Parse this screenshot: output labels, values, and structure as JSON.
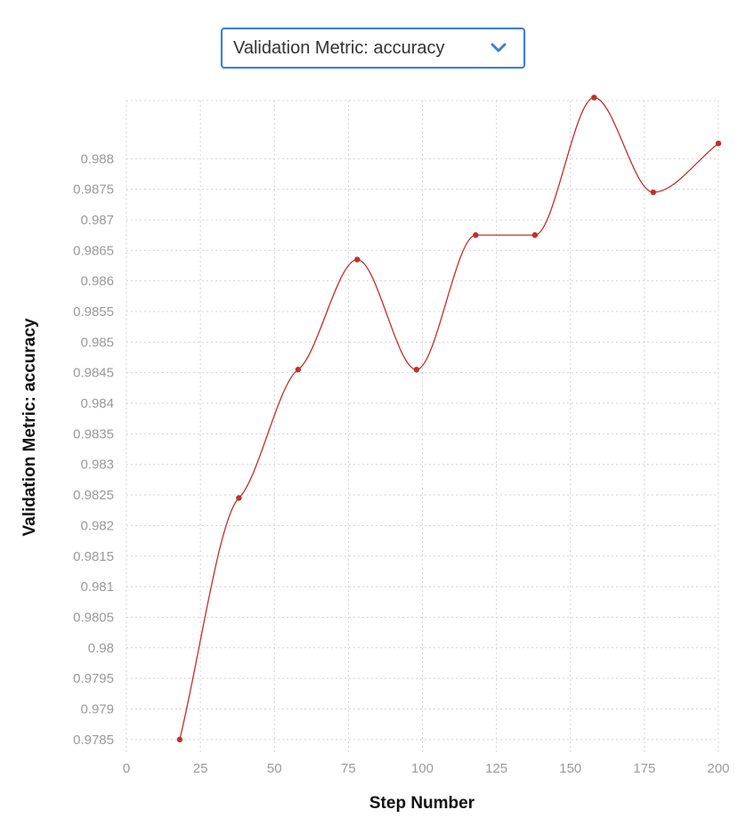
{
  "metric_selector": {
    "selected_label": "Validation Metric: accuracy",
    "icon": "chevron-down-icon"
  },
  "chart_data": {
    "type": "line",
    "xlabel": "Step Number",
    "ylabel": "Validation Metric: accuracy",
    "xlim": [
      0,
      200
    ],
    "ylim": [
      0.97825,
      0.98895
    ],
    "x_ticks": [
      0,
      25,
      50,
      75,
      100,
      125,
      150,
      175,
      200
    ],
    "x_tick_labels": [
      "0",
      "25",
      "50",
      "75",
      "100",
      "125",
      "150",
      "175",
      "200"
    ],
    "y_ticks": [
      0.9785,
      0.979,
      0.9795,
      0.98,
      0.9805,
      0.981,
      0.9815,
      0.982,
      0.9825,
      0.983,
      0.9835,
      0.984,
      0.9845,
      0.985,
      0.9855,
      0.986,
      0.9865,
      0.987,
      0.9875,
      0.988
    ],
    "y_tick_labels": [
      "0.9785",
      "0.979",
      "0.9795",
      "0.98",
      "0.9805",
      "0.981",
      "0.9815",
      "0.982",
      "0.9825",
      "0.983",
      "0.9835",
      "0.984",
      "0.9845",
      "0.985",
      "0.9855",
      "0.986",
      "0.9865",
      "0.987",
      "0.9875",
      "0.988"
    ],
    "grid": true,
    "series": [
      {
        "color": "#c0302a",
        "x": [
          18,
          38,
          58,
          78,
          98,
          118,
          138,
          158,
          178,
          200
        ],
        "y": [
          0.9785,
          0.98245,
          0.98455,
          0.98635,
          0.98455,
          0.98675,
          0.98675,
          0.989,
          0.98745,
          0.98825
        ]
      }
    ]
  }
}
